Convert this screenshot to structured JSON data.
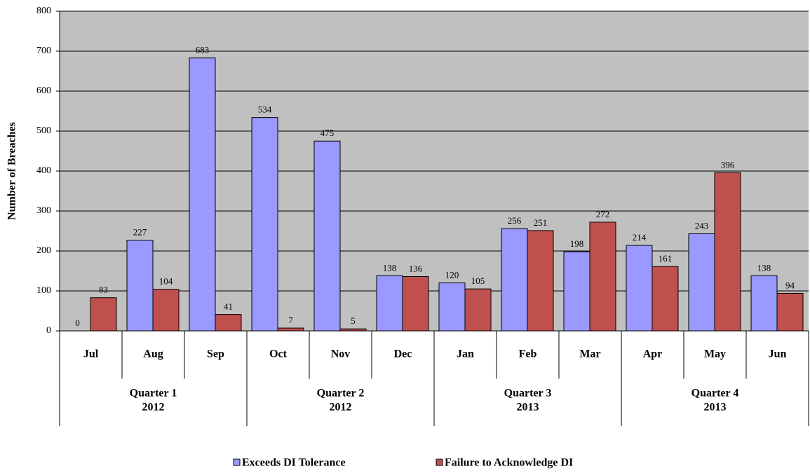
{
  "chart_data": {
    "type": "bar",
    "y_label": "Number of Breaches",
    "groups": [
      {
        "name": "Quarter 1",
        "year": "2012",
        "categories": [
          "Jul",
          "Aug",
          "Sep"
        ]
      },
      {
        "name": "Quarter 2",
        "year": "2012",
        "categories": [
          "Oct",
          "Nov",
          "Dec"
        ]
      },
      {
        "name": "Quarter 3",
        "year": "2013",
        "categories": [
          "Jan",
          "Feb",
          "Mar"
        ]
      },
      {
        "name": "Quarter 4",
        "year": "2013",
        "categories": [
          "Apr",
          "May",
          "Jun"
        ]
      }
    ],
    "series": [
      {
        "name": "Exceeds DI Tolerance",
        "color": "#9999ff",
        "values": [
          0,
          227,
          683,
          534,
          475,
          138,
          120,
          256,
          198,
          214,
          243,
          138
        ]
      },
      {
        "name": "Failure to Acknowledge DI",
        "color": "#c0504d",
        "values": [
          83,
          104,
          41,
          7,
          5,
          136,
          105,
          251,
          272,
          161,
          396,
          94
        ]
      }
    ],
    "ylim": [
      0,
      800
    ],
    "yticks": [
      0,
      100,
      200,
      300,
      400,
      500,
      600,
      700,
      800
    ],
    "grid": true,
    "plot_background": "#c0c0c0"
  }
}
